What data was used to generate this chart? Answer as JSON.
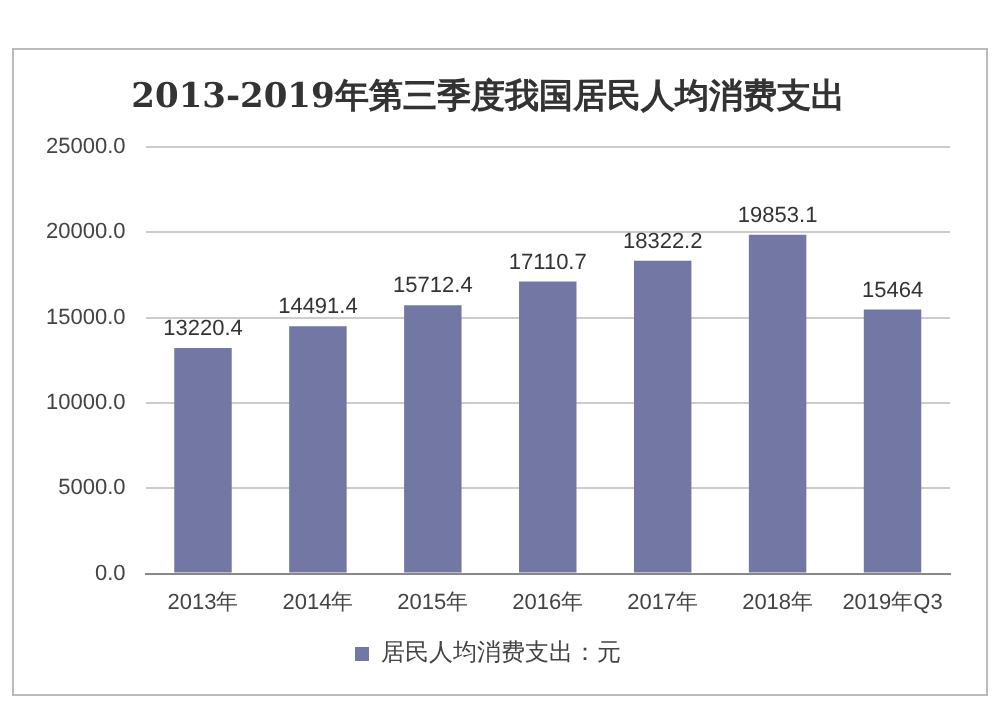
{
  "chart_data": {
    "type": "bar",
    "title": "2013-2019年第三季度我国居民人均消费支出",
    "categories": [
      "2013年",
      "2014年",
      "2015年",
      "2016年",
      "2017年",
      "2018年",
      "2019年Q3"
    ],
    "series": [
      {
        "name": "居民人均消费支出：元",
        "color": "#7278a3",
        "values": [
          13220.4,
          14491.4,
          15712.4,
          17110.7,
          18322.2,
          19853.1,
          15464
        ]
      }
    ],
    "ylim": [
      0,
      25000
    ],
    "yticks": [
      {
        "value": 0,
        "label": "0.0"
      },
      {
        "value": 5000,
        "label": "5000.0"
      },
      {
        "value": 10000,
        "label": "10000.0"
      },
      {
        "value": 15000,
        "label": "15000.0"
      },
      {
        "value": 20000,
        "label": "20000.0"
      },
      {
        "value": 25000,
        "label": "25000.0"
      }
    ],
    "grid": "y",
    "legend": "bottom",
    "data_labels": true
  }
}
